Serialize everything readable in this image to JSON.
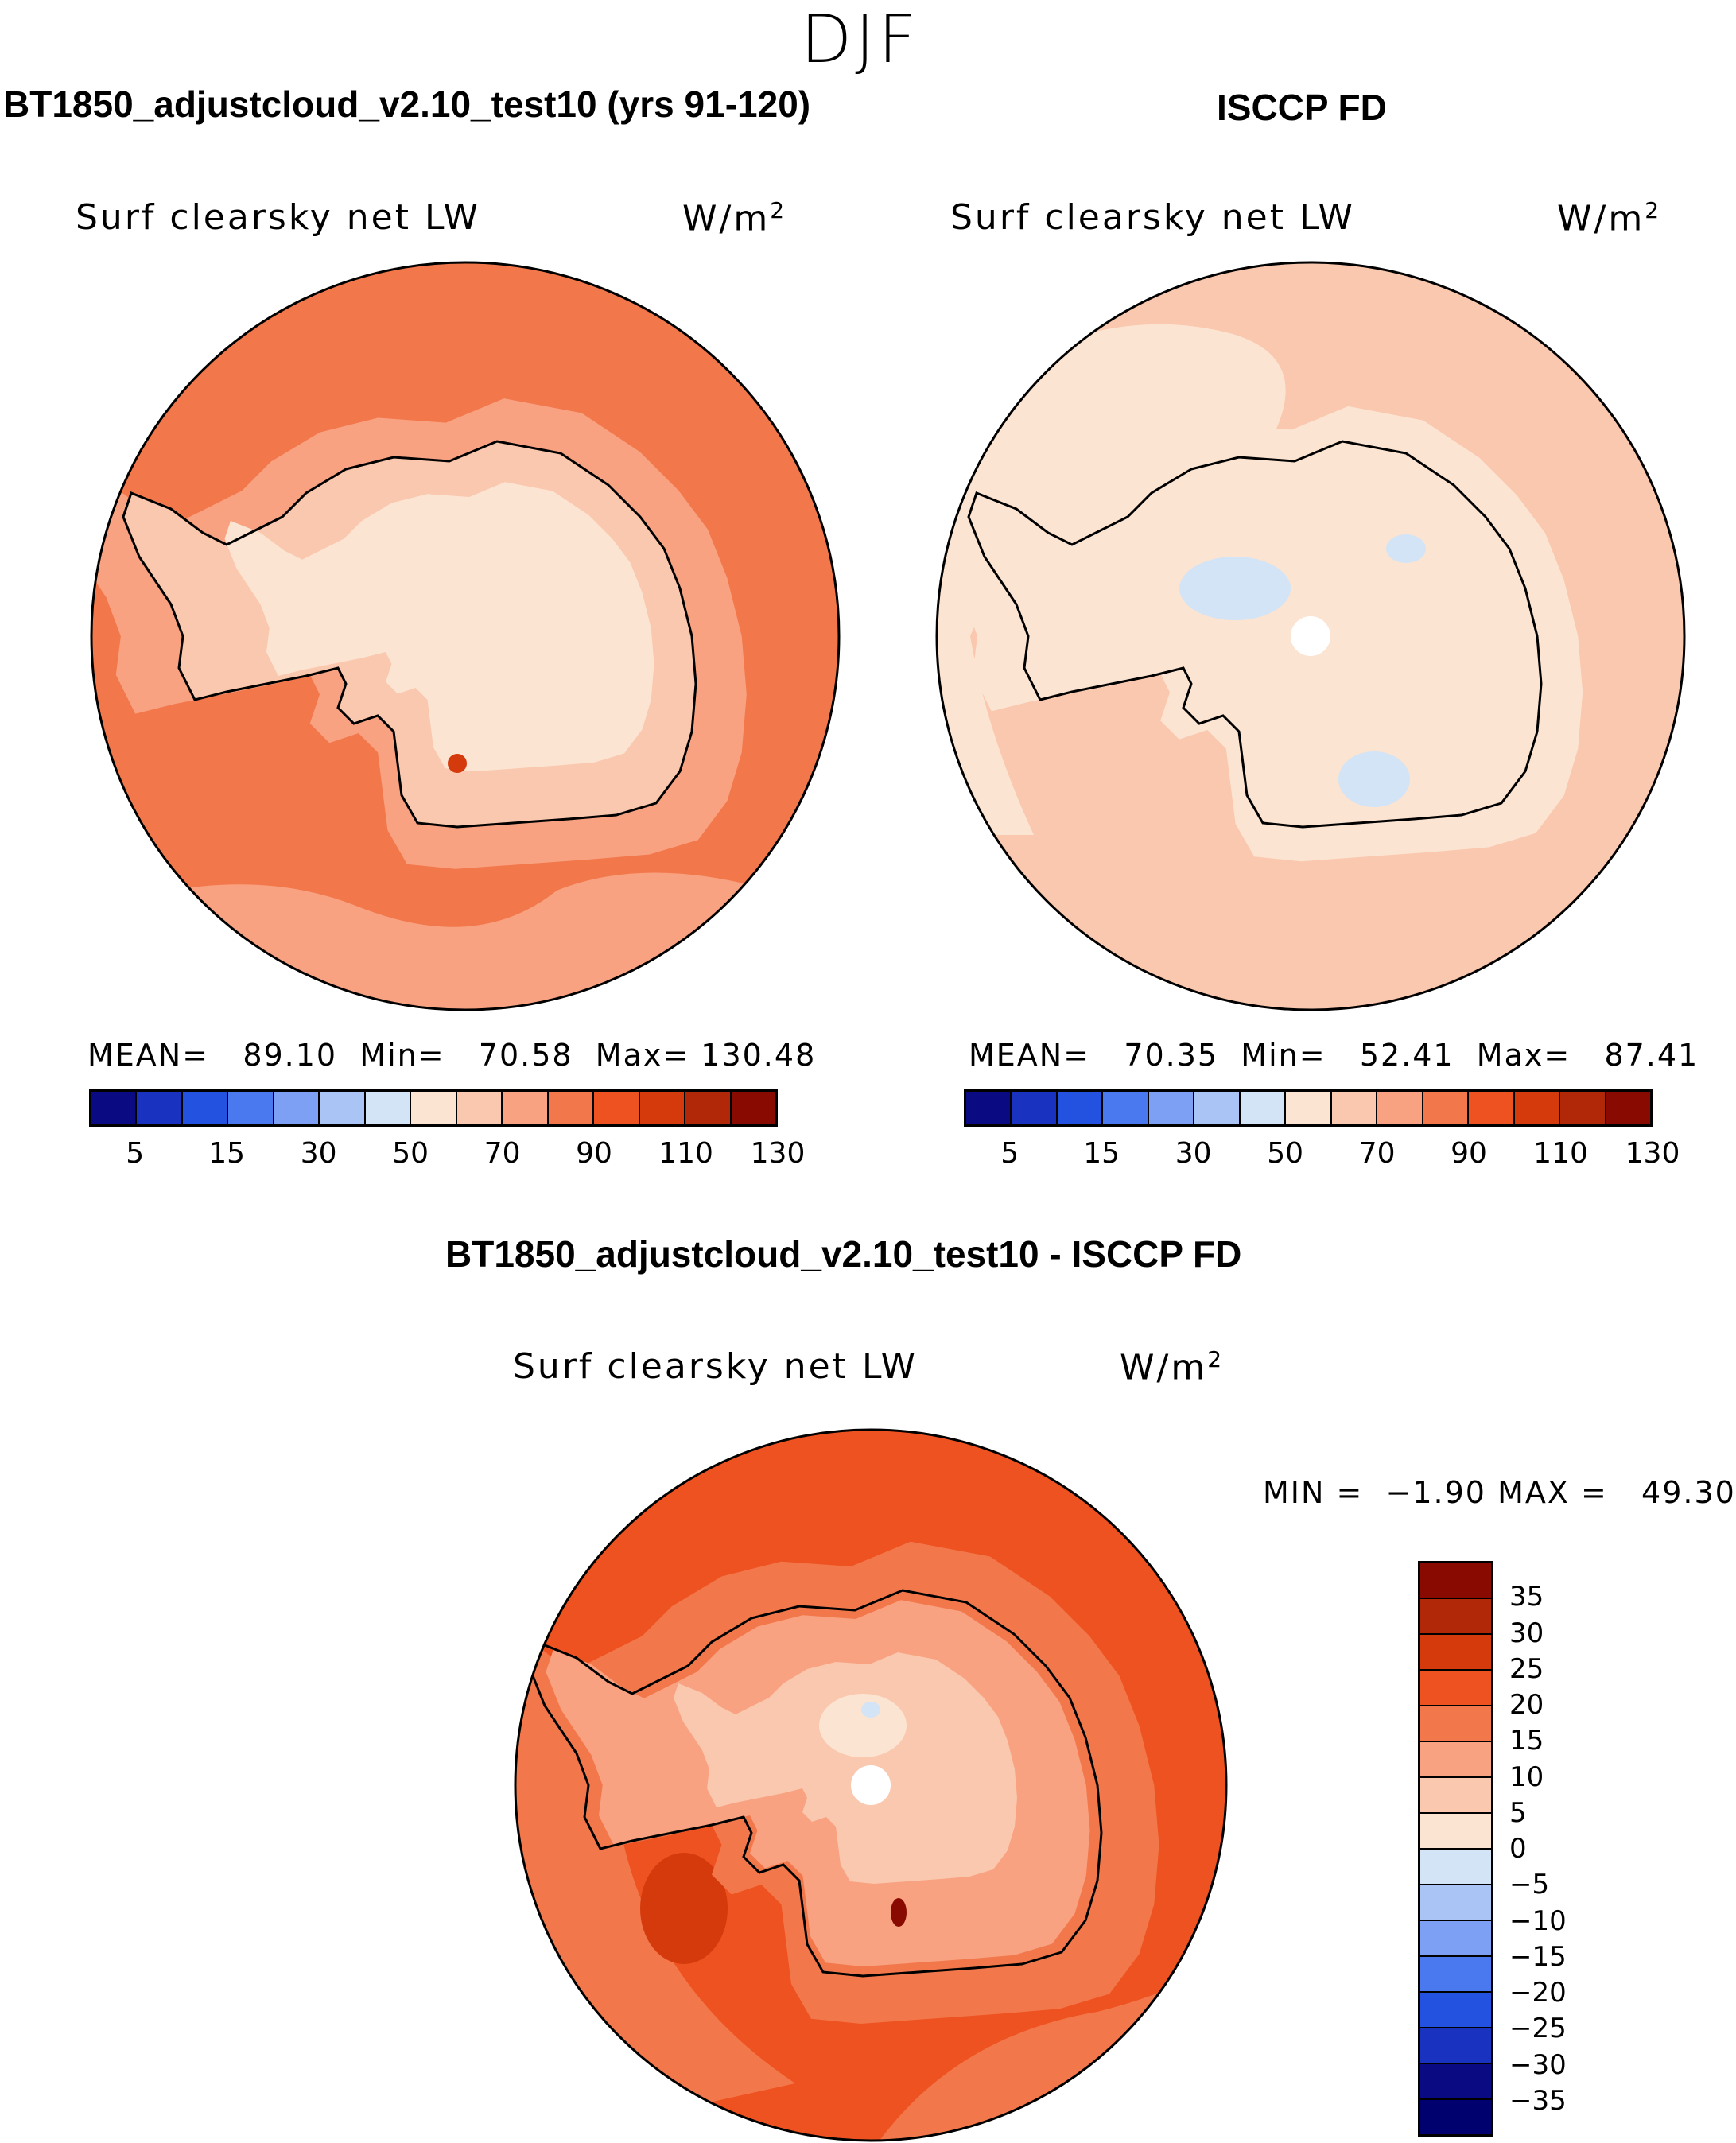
{
  "figure": {
    "season": "DJF",
    "model_title": "BT1850_adjustcloud_v2.10_test10 (yrs 91-120)",
    "obs_title": "ISCCP FD",
    "diff_title": "BT1850_adjustcloud_v2.10_test10 - ISCCP FD"
  },
  "panels": {
    "model": {
      "variable": "Surf clearsky net LW",
      "units": "W/m",
      "units_sup": "2",
      "mean_label": "MEAN=",
      "mean": "89.10",
      "min_label": "Min=",
      "min": "70.58",
      "max_label": "Max=",
      "max": "130.48"
    },
    "obs": {
      "variable": "Surf clearsky net LW",
      "units": "W/m",
      "units_sup": "2",
      "mean_label": "MEAN=",
      "mean": "70.35",
      "min_label": "Min=",
      "min": "52.41",
      "max_label": "Max=",
      "max": "87.41"
    },
    "diff": {
      "variable": "Surf clearsky net LW",
      "units": "W/m",
      "units_sup": "2",
      "min_label": "MIN =",
      "min": "−1.90",
      "max_label": "MAX =",
      "max": "49.30"
    }
  },
  "colorbars": {
    "main_ticks": [
      "5",
      "15",
      "30",
      "50",
      "70",
      "90",
      "110",
      "130"
    ],
    "main_colors": [
      "#0a0a82",
      "#1a32c0",
      "#2352e0",
      "#4a78ee",
      "#7ea0f4",
      "#aac4f6",
      "#d2e4f6",
      "#fce4d2",
      "#fac8ae",
      "#f8a282",
      "#f2784c",
      "#ee5220",
      "#d43a0c",
      "#b02808",
      "#880a00"
    ],
    "diff_ticks": [
      "35",
      "30",
      "25",
      "20",
      "15",
      "10",
      "5",
      "0",
      "−5",
      "−10",
      "−15",
      "−20",
      "−25",
      "−30",
      "−35"
    ],
    "diff_colors": [
      "#880a00",
      "#b02808",
      "#d43a0c",
      "#ee5220",
      "#f2784c",
      "#f8a282",
      "#fac8ae",
      "#fce4d2",
      "#d2e4f6",
      "#aac4f6",
      "#7ea0f4",
      "#4a78ee",
      "#2352e0",
      "#1a32c0",
      "#0a0a82",
      "#00006e"
    ]
  },
  "chart_data": [
    {
      "type": "map",
      "projection": "south polar stereographic",
      "title": "Surf clearsky net LW",
      "units": "W/m2",
      "mean": 89.1,
      "min": 70.58,
      "max": 130.48,
      "levels": [
        5,
        10,
        15,
        20,
        30,
        40,
        50,
        60,
        70,
        80,
        90,
        100,
        110,
        120,
        130
      ]
    },
    {
      "type": "map",
      "projection": "south polar stereographic",
      "title": "Surf clearsky net LW",
      "units": "W/m2",
      "mean": 70.35,
      "min": 52.41,
      "max": 87.41,
      "levels": [
        5,
        10,
        15,
        20,
        30,
        40,
        50,
        60,
        70,
        80,
        90,
        100,
        110,
        120,
        130
      ]
    },
    {
      "type": "map",
      "projection": "south polar stereographic",
      "title": "Surf clearsky net LW",
      "units": "W/m2",
      "min": -1.9,
      "max": 49.3,
      "levels": [
        -35,
        -30,
        -25,
        -20,
        -15,
        -10,
        -5,
        0,
        5,
        10,
        15,
        20,
        25,
        30,
        35
      ]
    }
  ]
}
